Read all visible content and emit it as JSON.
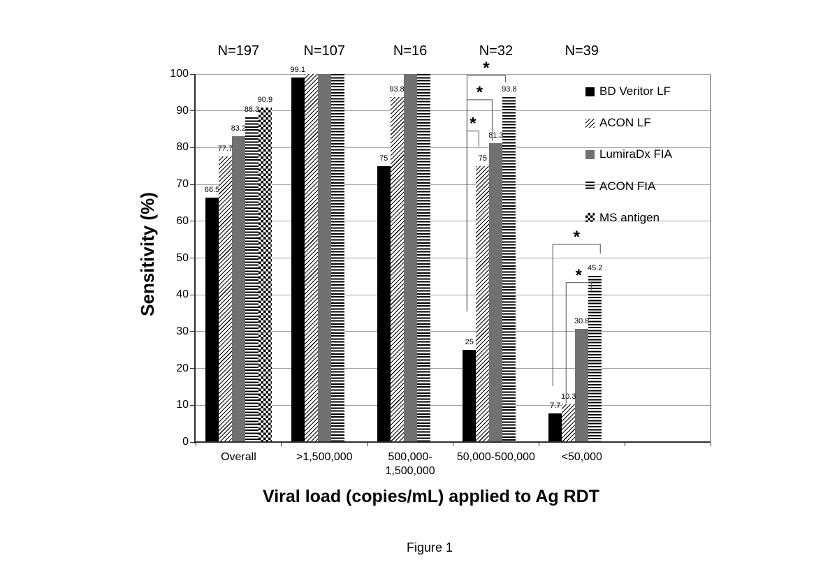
{
  "figure": {
    "caption": "Figure 1"
  },
  "chart_data": {
    "type": "bar",
    "title": "",
    "ylabel": "Sensitivity (%)",
    "xlabel": "Viral load (copies/mL) applied to Ag RDT",
    "ylim": [
      0,
      100
    ],
    "yticks": [
      0,
      10,
      20,
      30,
      40,
      50,
      60,
      70,
      80,
      90,
      100
    ],
    "grid": "horizontal",
    "categories": [
      "Overall",
      ">1,500,000",
      "500,000-\n1,500,000",
      "50,000-500,000",
      "<50,000"
    ],
    "group_counts": [
      "N=197",
      "N=107",
      "N=16",
      "N=32",
      "N=39"
    ],
    "series": [
      {
        "name": "BD Veritor LF",
        "pattern": "solid-black",
        "values": [
          66.5,
          99.1,
          75,
          25,
          7.7
        ],
        "labels": [
          "66.5",
          "99.1",
          "75",
          "25",
          "7.7"
        ]
      },
      {
        "name": "ACON LF",
        "pattern": "diagonal-hatch",
        "values": [
          77.7,
          100,
          93.8,
          75,
          10.3
        ],
        "labels": [
          "77.7",
          null,
          "93.8",
          "75",
          "10.3"
        ]
      },
      {
        "name": "LumiraDx FIA",
        "pattern": "solid-gray",
        "values": [
          83.2,
          100,
          100,
          81.3,
          30.8
        ],
        "labels": [
          "83.2",
          null,
          null,
          "81.3",
          "30.8"
        ]
      },
      {
        "name": "ACON FIA",
        "pattern": "horizontal-stripes",
        "values": [
          88.3,
          100,
          100,
          93.8,
          45.2
        ],
        "labels": [
          "88.3",
          null,
          null,
          "93.8",
          "45.2"
        ]
      },
      {
        "name": "MS antigen",
        "pattern": "checkerboard",
        "values": [
          90.9,
          null,
          null,
          null,
          null
        ],
        "labels": [
          "90.9",
          null,
          null,
          null,
          null
        ]
      }
    ],
    "legend": [
      "BD Veritor LF",
      "ACON LF",
      "LumiraDx FIA",
      "ACON FIA",
      "MS antigen"
    ],
    "legend_position": "inside-top-right",
    "significance_brackets": [
      {
        "category": "50,000-500,000",
        "from": "BD Veritor LF",
        "to": "ACON LF",
        "marker": "*",
        "arm_value": 84.5,
        "drop_value": 35.5,
        "to_drop_value": 80.3,
        "to_edge": "left"
      },
      {
        "category": "50,000-500,000",
        "from": "BD Veritor LF",
        "to": "LumiraDx FIA",
        "marker": "*",
        "arm_value": 93.0,
        "drop_value": 35.5,
        "to_drop_value": 81.8,
        "to_edge": "left"
      },
      {
        "category": "50,000-500,000",
        "from": "BD Veritor LF",
        "to": "ACON FIA",
        "marker": "*",
        "arm_value": 99.6,
        "drop_value": 35.5,
        "to_drop_value": 97.7,
        "to_edge": "left"
      },
      {
        "category": "<50,000",
        "from": "ACON LF",
        "to": "ACON FIA",
        "marker": "*",
        "arm_value": 43.3,
        "drop_value": 10.45,
        "to_drop_value": 41.3,
        "to_edge": "left"
      },
      {
        "category": "<50,000",
        "from": "BD Veritor LF",
        "to": "ACON FIA",
        "marker": "*",
        "arm_value": 53.7,
        "drop_value": 15.2,
        "to_drop_value": 51.2,
        "to_edge": "right"
      }
    ]
  },
  "colors": {
    "background": "#ffffff",
    "bar_black": "#000000",
    "bar_gray": "#717171",
    "gridline": "#a0a0a0",
    "axis": "#2e2e2e",
    "bracket_line": "#4d4d4d",
    "text": "#000000"
  }
}
